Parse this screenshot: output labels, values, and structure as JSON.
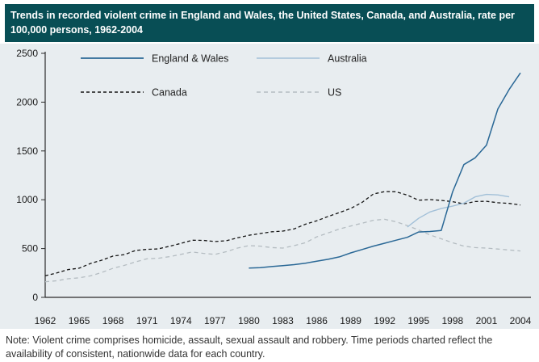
{
  "header": {
    "title": "Trends in recorded violent crime in England and Wales, the United States, Canada, and Australia, rate per 100,000 persons, 1962-2004"
  },
  "note": "Note: Violent crime comprises homicide, assault, sexual assault and robbery. Time periods charted reflect the availability of consistent, nationwide data for each country.",
  "colors": {
    "header_bg": "#084e55",
    "header_text": "#ffffff",
    "panel_bg": "#e8edf0",
    "axis": "#2b2b2b",
    "tick_text": "#1a1a1a",
    "note_text": "#333333",
    "england_wales": "#2a6896",
    "australia": "#a2c0d8",
    "canada": "#141414",
    "us": "#b4bcc1"
  },
  "chart_data": {
    "type": "line",
    "title": "Trends in recorded violent crime in England and Wales, the United States, Canada, and Australia, rate per 100,000 persons, 1962-2004",
    "xlabel": "",
    "ylabel": "rate per 100,000 persons",
    "xlim": [
      1962,
      2004
    ],
    "ylim": [
      0,
      2500
    ],
    "yticks": [
      0,
      500,
      1000,
      1500,
      2000,
      2500
    ],
    "xticks": [
      1962,
      1965,
      1968,
      1971,
      1974,
      1977,
      1980,
      1983,
      1986,
      1989,
      1992,
      1995,
      1998,
      2001,
      2004
    ],
    "grid": false,
    "legend_position": "top-inside-two-columns",
    "series": [
      {
        "name": "England & Wales",
        "color": "#2a6896",
        "dash": "none",
        "width": 1.5,
        "x": [
          1980,
          1981,
          1982,
          1983,
          1984,
          1985,
          1986,
          1987,
          1988,
          1989,
          1990,
          1991,
          1992,
          1993,
          1994,
          1995,
          1996,
          1997,
          1998,
          1999,
          2000,
          2001,
          2002,
          2003,
          2004
        ],
        "values": [
          300,
          305,
          315,
          325,
          335,
          350,
          370,
          390,
          415,
          455,
          490,
          525,
          555,
          585,
          615,
          670,
          675,
          685,
          1080,
          1360,
          1430,
          1560,
          1930,
          2130,
          2300
        ]
      },
      {
        "name": "Australia",
        "color": "#a2c0d8",
        "dash": "none",
        "width": 1.4,
        "x": [
          1994,
          1995,
          1996,
          1997,
          1998,
          1999,
          2000,
          2001,
          2002,
          2003
        ],
        "values": [
          720,
          810,
          875,
          910,
          935,
          965,
          1030,
          1055,
          1050,
          1030
        ]
      },
      {
        "name": "Canada",
        "color": "#141414",
        "dash": "4 3",
        "width": 1.3,
        "x": [
          1962,
          1963,
          1964,
          1965,
          1966,
          1967,
          1968,
          1969,
          1970,
          1971,
          1972,
          1973,
          1974,
          1975,
          1976,
          1977,
          1978,
          1979,
          1980,
          1981,
          1982,
          1983,
          1984,
          1985,
          1986,
          1987,
          1988,
          1989,
          1990,
          1991,
          1992,
          1993,
          1994,
          1995,
          1996,
          1997,
          1998,
          1999,
          2000,
          2001,
          2002,
          2003,
          2004
        ],
        "values": [
          221,
          249,
          284,
          299,
          347,
          381,
          423,
          438,
          481,
          492,
          497,
          524,
          553,
          585,
          584,
          572,
          580,
          610,
          636,
          654,
          671,
          679,
          701,
          749,
          785,
          829,
          868,
          911,
          973,
          1059,
          1084,
          1082,
          1047,
          995,
          1002,
          993,
          980,
          958,
          982,
          984,
          969,
          963,
          946
        ]
      },
      {
        "name": "US",
        "color": "#b4bcc1",
        "dash": "5 4",
        "width": 1.3,
        "x": [
          1962,
          1963,
          1964,
          1965,
          1966,
          1967,
          1968,
          1969,
          1970,
          1971,
          1972,
          1973,
          1974,
          1975,
          1976,
          1977,
          1978,
          1979,
          1980,
          1981,
          1982,
          1983,
          1984,
          1985,
          1986,
          1987,
          1988,
          1989,
          1990,
          1991,
          1992,
          1993,
          1994,
          1995,
          1996,
          1997,
          1998,
          1999,
          2000,
          2001,
          2002,
          2003,
          2004
        ],
        "values": [
          160,
          170,
          190,
          200,
          220,
          255,
          298,
          328,
          363,
          396,
          401,
          417,
          440,
          465,
          450,
          440,
          468,
          505,
          530,
          525,
          510,
          505,
          530,
          560,
          620,
          660,
          700,
          730,
          760,
          790,
          800,
          775,
          735,
          690,
          640,
          600,
          560,
          525,
          510,
          505,
          495,
          485,
          475
        ]
      }
    ]
  }
}
